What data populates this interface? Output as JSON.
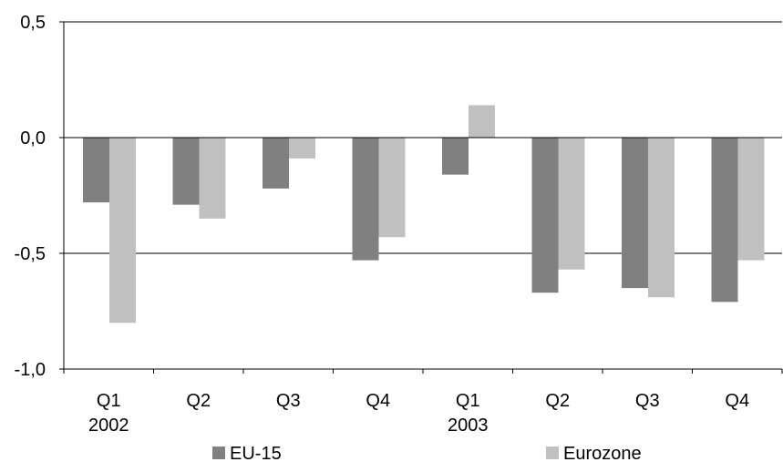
{
  "chart_data": {
    "type": "bar",
    "categories": [
      "Q1",
      "Q2",
      "Q3",
      "Q4",
      "Q1",
      "Q2",
      "Q3",
      "Q4"
    ],
    "years": [
      "2002",
      "",
      "",
      "",
      "2003",
      "",
      "",
      ""
    ],
    "series": [
      {
        "name": "EU-15",
        "color": "#808080",
        "values": [
          -0.28,
          -0.29,
          -0.22,
          -0.53,
          -0.16,
          -0.67,
          -0.65,
          -0.71
        ]
      },
      {
        "name": "Eurozone",
        "color": "#c0c0c0",
        "values": [
          -0.8,
          -0.35,
          -0.09,
          -0.43,
          0.14,
          -0.57,
          -0.69,
          -0.53
        ]
      }
    ],
    "yticks": [
      {
        "value": 0.5,
        "label": "0,5"
      },
      {
        "value": 0.0,
        "label": "0,0"
      },
      {
        "value": -0.5,
        "label": "-0,5"
      },
      {
        "value": -1.0,
        "label": "-1,0"
      }
    ],
    "ylim": [
      -1.0,
      0.5
    ],
    "grid": "horizontal",
    "legend_position": "bottom"
  }
}
